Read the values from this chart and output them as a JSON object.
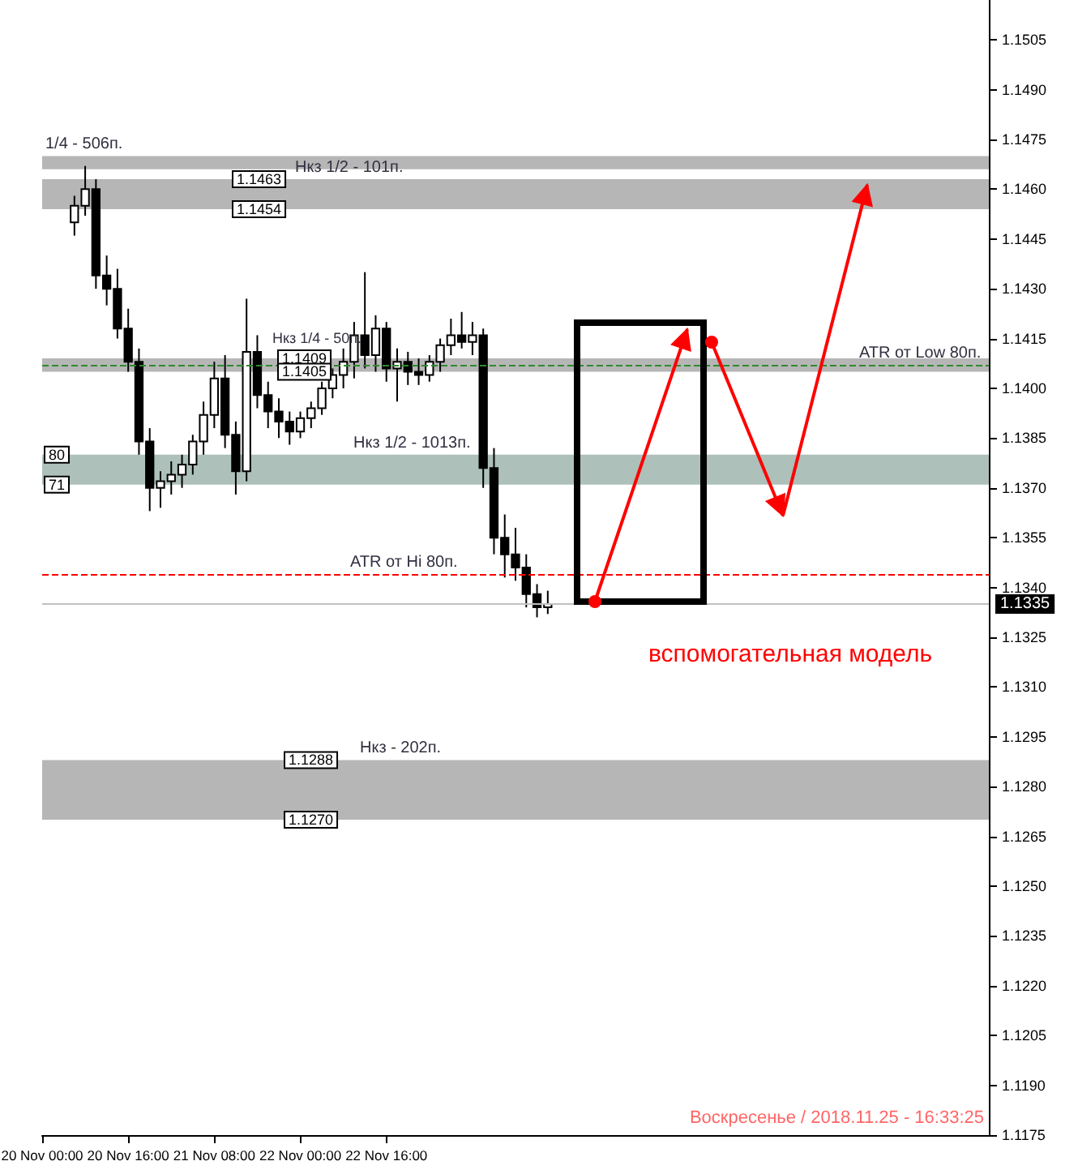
{
  "chart_data": {
    "type": "candlestick",
    "color": "#000000",
    "x": [
      "2018-11-20T06:00",
      "2018-11-20T08:00",
      "2018-11-20T10:00",
      "2018-11-20T12:00",
      "2018-11-20T14:00",
      "2018-11-20T16:00",
      "2018-11-20T18:00",
      "2018-11-20T20:00",
      "2018-11-20T22:00",
      "2018-11-21T00:00",
      "2018-11-21T02:00",
      "2018-11-21T04:00",
      "2018-11-21T06:00",
      "2018-11-21T08:00",
      "2018-11-21T10:00",
      "2018-11-21T12:00",
      "2018-11-21T14:00",
      "2018-11-21T16:00",
      "2018-11-21T18:00",
      "2018-11-21T20:00",
      "2018-11-21T22:00",
      "2018-11-22T00:00",
      "2018-11-22T02:00",
      "2018-11-22T04:00",
      "2018-11-22T06:00",
      "2018-11-22T08:00",
      "2018-11-22T10:00",
      "2018-11-22T12:00",
      "2018-11-22T14:00",
      "2018-11-22T16:00",
      "2018-11-22T18:00",
      "2018-11-22T20:00",
      "2018-11-22T22:00",
      "2018-11-23T00:00",
      "2018-11-23T02:00",
      "2018-11-23T04:00",
      "2018-11-23T06:00",
      "2018-11-23T08:00",
      "2018-11-23T10:00",
      "2018-11-23T12:00",
      "2018-11-23T14:00",
      "2018-11-23T16:00",
      "2018-11-23T18:00",
      "2018-11-23T20:00",
      "2018-11-23T22:00"
    ],
    "ohlc": [
      [
        1.145,
        1.1458,
        1.1446,
        1.1455
      ],
      [
        1.1455,
        1.1467,
        1.1452,
        1.146
      ],
      [
        1.146,
        1.1463,
        1.143,
        1.1434
      ],
      [
        1.1434,
        1.144,
        1.1425,
        1.143
      ],
      [
        1.143,
        1.1436,
        1.1415,
        1.1418
      ],
      [
        1.1418,
        1.1424,
        1.1405,
        1.1408
      ],
      [
        1.1408,
        1.1412,
        1.138,
        1.1384
      ],
      [
        1.1384,
        1.1388,
        1.1363,
        1.137
      ],
      [
        1.137,
        1.1375,
        1.1364,
        1.1372
      ],
      [
        1.1372,
        1.1378,
        1.1368,
        1.1374
      ],
      [
        1.1374,
        1.138,
        1.137,
        1.1377
      ],
      [
        1.1377,
        1.1386,
        1.1374,
        1.1384
      ],
      [
        1.1384,
        1.1396,
        1.138,
        1.1392
      ],
      [
        1.1392,
        1.1408,
        1.1388,
        1.1403
      ],
      [
        1.1403,
        1.141,
        1.1382,
        1.1386
      ],
      [
        1.1386,
        1.139,
        1.1368,
        1.1375
      ],
      [
        1.1375,
        1.1427,
        1.1372,
        1.1411
      ],
      [
        1.1411,
        1.1416,
        1.1394,
        1.1398
      ],
      [
        1.1398,
        1.1402,
        1.1388,
        1.1393
      ],
      [
        1.1393,
        1.1397,
        1.1385,
        1.139
      ],
      [
        1.139,
        1.1393,
        1.1383,
        1.1387
      ],
      [
        1.1387,
        1.1393,
        1.1385,
        1.1391
      ],
      [
        1.1391,
        1.1396,
        1.1388,
        1.1394
      ],
      [
        1.1394,
        1.1402,
        1.1392,
        1.14
      ],
      [
        1.14,
        1.1406,
        1.1397,
        1.1404
      ],
      [
        1.1404,
        1.1412,
        1.14,
        1.1408
      ],
      [
        1.1408,
        1.142,
        1.1403,
        1.1416
      ],
      [
        1.1416,
        1.1435,
        1.1406,
        1.141
      ],
      [
        1.141,
        1.1422,
        1.1405,
        1.1418
      ],
      [
        1.1418,
        1.142,
        1.1402,
        1.1406
      ],
      [
        1.1406,
        1.1412,
        1.1396,
        1.1408
      ],
      [
        1.1408,
        1.1411,
        1.1401,
        1.1405
      ],
      [
        1.1405,
        1.1409,
        1.1401,
        1.1404
      ],
      [
        1.1404,
        1.141,
        1.1402,
        1.1408
      ],
      [
        1.1408,
        1.1415,
        1.1405,
        1.1413
      ],
      [
        1.1413,
        1.1421,
        1.141,
        1.1416
      ],
      [
        1.1416,
        1.1423,
        1.1412,
        1.1414
      ],
      [
        1.1414,
        1.142,
        1.141,
        1.1416
      ],
      [
        1.1416,
        1.1418,
        1.137,
        1.1376
      ],
      [
        1.1376,
        1.1382,
        1.135,
        1.1355
      ],
      [
        1.1355,
        1.1362,
        1.1343,
        1.135
      ],
      [
        1.135,
        1.1358,
        1.1342,
        1.1346
      ],
      [
        1.1346,
        1.135,
        1.1334,
        1.1338
      ],
      [
        1.1338,
        1.1341,
        1.1331,
        1.1334
      ],
      [
        1.1334,
        1.1339,
        1.1332,
        1.1335
      ]
    ],
    "xlim": [
      "2018-11-20T00:00",
      "2018-11-27T08:00"
    ],
    "xticks": [
      {
        "value": "2018-11-20T00:00",
        "label": "20 Nov 00:00"
      },
      {
        "value": "2018-11-20T16:00",
        "label": "20 Nov 16:00"
      },
      {
        "value": "2018-11-21T08:00",
        "label": "21 Nov 08:00"
      },
      {
        "value": "2018-11-22T00:00",
        "label": "22 Nov 00:00"
      },
      {
        "value": "2018-11-22T16:00",
        "label": "22 Nov 16:00"
      }
    ],
    "ylim": [
      1.1175,
      1.1517
    ],
    "yticks": [
      1.1175,
      {
        "value": 1.119,
        "label": "1.1190"
      },
      1.1205,
      {
        "value": 1.122,
        "label": "1.1220"
      },
      1.1235,
      {
        "value": 1.125,
        "label": "1.1250"
      },
      1.1265,
      {
        "value": 1.128,
        "label": "1.1280"
      },
      1.1295,
      {
        "value": 1.131,
        "label": "1.1310"
      },
      1.1325,
      {
        "value": 1.134,
        "label": "1.1340"
      },
      1.1355,
      {
        "value": 1.137,
        "label": "1.1370"
      },
      1.1385,
      {
        "value": 1.14,
        "label": "1.1400"
      },
      1.1415,
      {
        "value": 1.143,
        "label": "1.1430"
      },
      1.1445,
      {
        "value": 1.146,
        "label": "1.1460"
      },
      1.1475,
      {
        "value": 1.149,
        "label": "1.1490"
      },
      1.1505
    ],
    "bands": [
      {
        "axis": "y",
        "from": 1.1466,
        "to": 1.147,
        "label": "1/4 - 506п.",
        "color": "#a9a9a9"
      },
      {
        "axis": "y",
        "from": 1.1454,
        "to": 1.1463,
        "label": "Нкз 1/2 - 101п.",
        "color": "#a9a9a9"
      },
      {
        "axis": "y",
        "from": 1.1405,
        "to": 1.1409,
        "label": "Нкз 1/4 - 50п.",
        "color": "#a9a9a9"
      },
      {
        "axis": "y",
        "from": 1.1371,
        "to": 1.138,
        "label": "Нкз 1/2 - 1013п.",
        "color": "#9fb5ae"
      },
      {
        "axis": "y",
        "from": 1.127,
        "to": 1.1288,
        "label": "Нкз - 202п.",
        "color": "#a9a9a9"
      }
    ],
    "ref_lines": [
      {
        "axis": "y",
        "value": 1.1335,
        "label": "1.1335",
        "color": "#c0c0c0"
      },
      {
        "axis": "y",
        "value": 1.1407,
        "label": "ATR от Low 80п.",
        "color": "#2e8b2e",
        "line_style": "dashed"
      },
      {
        "axis": "y",
        "value": 1.1344,
        "label": "ATR от Hi 80п.",
        "color": "#ff0000",
        "line_style": "dashed"
      }
    ],
    "annotations": [
      {
        "text": "1.1463",
        "y": 1.1463
      },
      {
        "text": "1.1454",
        "y": 1.1454
      },
      {
        "text": "1.1409",
        "y": 1.1409
      },
      {
        "text": "1.1405",
        "y": 1.1405
      },
      {
        "text": "80",
        "y": 1.138
      },
      {
        "text": "71",
        "y": 1.1371
      },
      {
        "text": "1.1288",
        "y": 1.1288
      },
      {
        "text": "1.1270",
        "y": 1.127
      },
      "вспомогательная модель",
      "Воскресенье / 2018.11.25 - 16:33:25"
    ],
    "grid": false
  }
}
